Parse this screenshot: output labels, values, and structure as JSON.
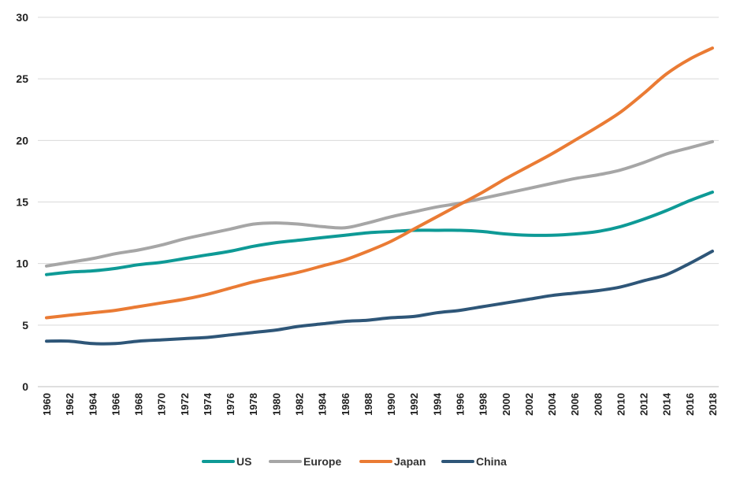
{
  "chart_data": {
    "type": "line",
    "title": "",
    "xlabel": "",
    "ylabel": "",
    "ylim": [
      0,
      30
    ],
    "yticks": [
      0,
      5,
      10,
      15,
      20,
      25,
      30
    ],
    "grid": true,
    "legend_position": "bottom",
    "x": [
      1960,
      1962,
      1964,
      1966,
      1968,
      1970,
      1972,
      1974,
      1976,
      1978,
      1980,
      1982,
      1984,
      1986,
      1988,
      1990,
      1992,
      1994,
      1996,
      1998,
      2000,
      2002,
      2004,
      2006,
      2008,
      2010,
      2012,
      2014,
      2016,
      2018
    ],
    "x_tick_labels": [
      "1960",
      "1962",
      "1964",
      "1966",
      "1968",
      "1970",
      "1972",
      "1974",
      "1976",
      "1978",
      "1980",
      "1982",
      "1984",
      "1986",
      "1988",
      "1990",
      "1992",
      "1994",
      "1996",
      "1998",
      "2000",
      "2002",
      "2004",
      "2006",
      "2008",
      "2010",
      "2012",
      "2014",
      "2016",
      "2018"
    ],
    "series": [
      {
        "name": "US",
        "color": "#0e9a96",
        "values": [
          9.1,
          9.3,
          9.4,
          9.6,
          9.9,
          10.1,
          10.4,
          10.7,
          11.0,
          11.4,
          11.7,
          11.9,
          12.1,
          12.3,
          12.5,
          12.6,
          12.7,
          12.7,
          12.7,
          12.6,
          12.4,
          12.3,
          12.3,
          12.4,
          12.6,
          13.0,
          13.6,
          14.3,
          15.1,
          15.8
        ]
      },
      {
        "name": "Europe",
        "color": "#a6a6a6",
        "values": [
          9.8,
          10.1,
          10.4,
          10.8,
          11.1,
          11.5,
          12.0,
          12.4,
          12.8,
          13.2,
          13.3,
          13.2,
          13.0,
          12.9,
          13.3,
          13.8,
          14.2,
          14.6,
          14.9,
          15.3,
          15.7,
          16.1,
          16.5,
          16.9,
          17.2,
          17.6,
          18.2,
          18.9,
          19.4,
          19.9
        ]
      },
      {
        "name": "Japan",
        "color": "#ea7b34",
        "values": [
          5.6,
          5.8,
          6.0,
          6.2,
          6.5,
          6.8,
          7.1,
          7.5,
          8.0,
          8.5,
          8.9,
          9.3,
          9.8,
          10.3,
          11.0,
          11.8,
          12.8,
          13.8,
          14.8,
          15.8,
          16.9,
          17.9,
          18.9,
          20.0,
          21.1,
          22.3,
          23.8,
          25.4,
          26.6,
          27.5
        ]
      },
      {
        "name": "China",
        "color": "#2e5678",
        "values": [
          3.7,
          3.7,
          3.5,
          3.5,
          3.7,
          3.8,
          3.9,
          4.0,
          4.2,
          4.4,
          4.6,
          4.9,
          5.1,
          5.3,
          5.4,
          5.6,
          5.7,
          6.0,
          6.2,
          6.5,
          6.8,
          7.1,
          7.4,
          7.6,
          7.8,
          8.1,
          8.6,
          9.1,
          10.0,
          11.0
        ]
      }
    ]
  }
}
